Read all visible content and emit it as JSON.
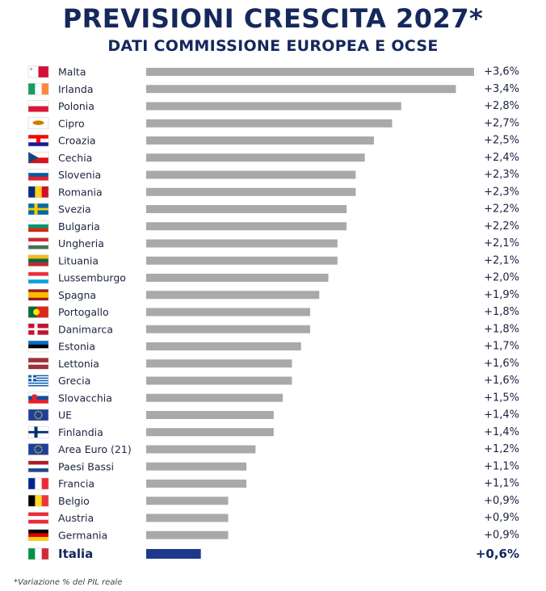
{
  "header": {
    "title": "PREVISIONI CRESCITA 2027*",
    "subtitle": "DATI COMMISSIONE EUROPEA E OCSE"
  },
  "footnote": "*Variazione % del PIL reale",
  "colors": {
    "bar": "#a9a9a9",
    "highlight_bar": "#1d3a8a",
    "text": "#1b2340",
    "title": "#15285c"
  },
  "chart_data": {
    "type": "bar",
    "orientation": "horizontal",
    "unit": "%",
    "xlim": [
      0,
      3.6
    ],
    "grid": false,
    "categories": [
      "Malta",
      "Irlanda",
      "Polonia",
      "Cipro",
      "Croazia",
      "Cechia",
      "Slovenia",
      "Romania",
      "Svezia",
      "Bulgaria",
      "Ungheria",
      "Lituania",
      "Lussemburgo",
      "Spagna",
      "Portogallo",
      "Danimarca",
      "Estonia",
      "Lettonia",
      "Grecia",
      "Slovacchia",
      "UE",
      "Finlandia",
      "Area Euro (21)",
      "Paesi Bassi",
      "Francia",
      "Belgio",
      "Austria",
      "Germania",
      "Italia"
    ],
    "values": [
      3.6,
      3.4,
      2.8,
      2.7,
      2.5,
      2.4,
      2.3,
      2.3,
      2.2,
      2.2,
      2.1,
      2.1,
      2.0,
      1.9,
      1.8,
      1.8,
      1.7,
      1.6,
      1.6,
      1.5,
      1.4,
      1.4,
      1.2,
      1.1,
      1.1,
      0.9,
      0.9,
      0.9,
      0.6
    ],
    "labels": [
      "+3,6%",
      "+3,4%",
      "+2,8%",
      "+2,7%",
      "+2,5%",
      "+2,4%",
      "+2,3%",
      "+2,3%",
      "+2,2%",
      "+2,2%",
      "+2,1%",
      "+2,1%",
      "+2,0%",
      "+1,9%",
      "+1,8%",
      "+1,8%",
      "+1,7%",
      "+1,6%",
      "+1,6%",
      "+1,5%",
      "+1,4%",
      "+1,4%",
      "+1,2%",
      "+1,1%",
      "+1,1%",
      "+0,9%",
      "+0,9%",
      "+0,9%",
      "+0,6%"
    ],
    "flags": [
      "malta-flag",
      "ireland-flag",
      "poland-flag",
      "cyprus-flag",
      "croatia-flag",
      "czechia-flag",
      "slovenia-flag",
      "romania-flag",
      "sweden-flag",
      "bulgaria-flag",
      "hungary-flag",
      "lithuania-flag",
      "luxembourg-flag",
      "spain-flag",
      "portugal-flag",
      "denmark-flag",
      "estonia-flag",
      "latvia-flag",
      "greece-flag",
      "slovakia-flag",
      "eu-flag",
      "finland-flag",
      "eu-flag",
      "netherlands-flag",
      "france-flag",
      "belgium-flag",
      "austria-flag",
      "germany-flag",
      "italy-flag"
    ],
    "highlight": "Italia"
  }
}
